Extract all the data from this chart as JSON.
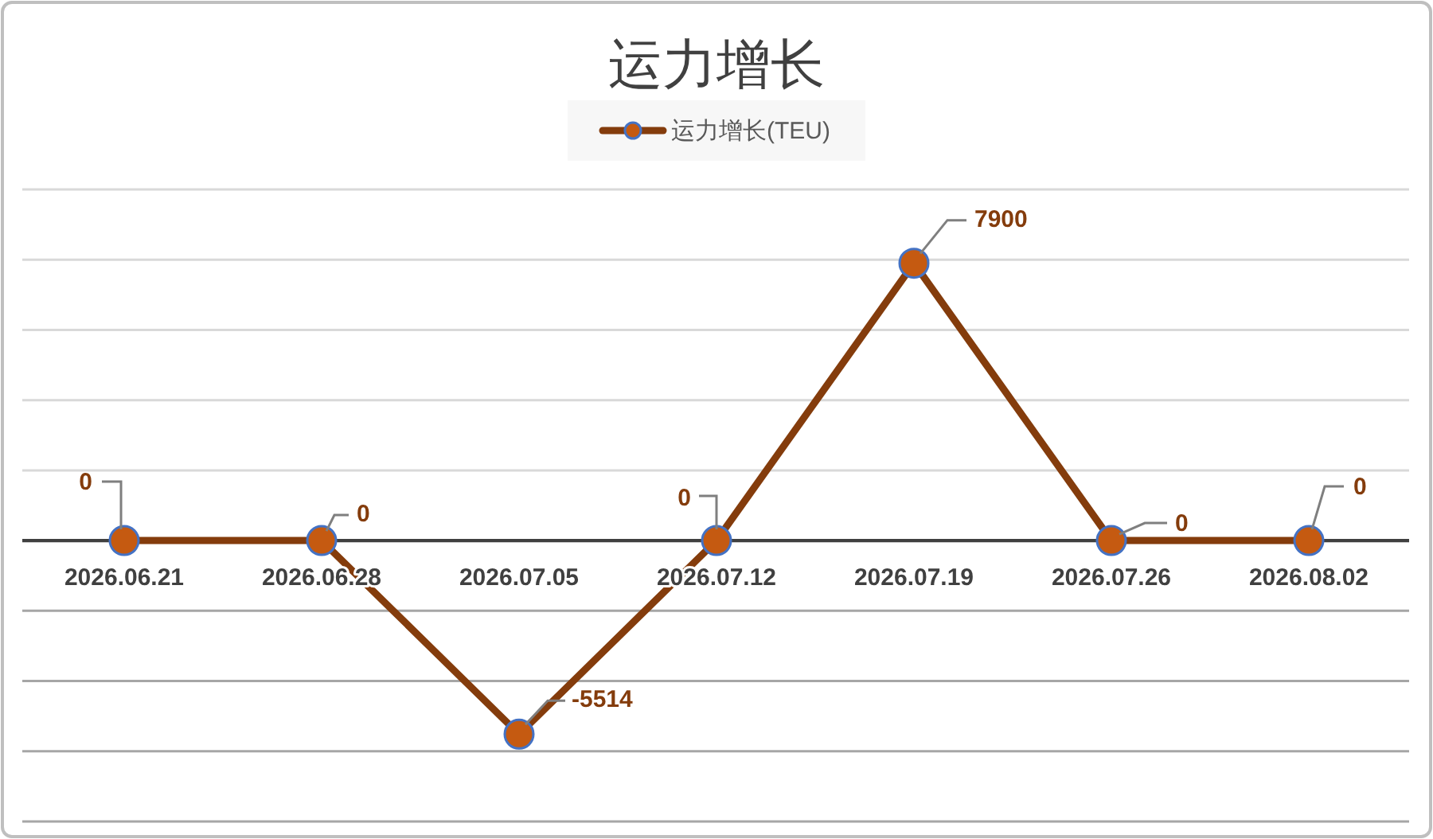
{
  "chart_data": {
    "type": "line",
    "title": "运力增长",
    "categories": [
      "2026.06.21",
      "2026.06.28",
      "2026.07.05",
      "2026.07.12",
      "2026.07.19",
      "2026.07.26",
      "2026.08.02"
    ],
    "series": [
      {
        "name": "运力增长(TEU)",
        "color": "#843c0c",
        "values": [
          0,
          0,
          -5514,
          0,
          7900,
          0,
          0
        ]
      }
    ],
    "ylim": [
      -8000,
      10000
    ],
    "yticks": [
      {
        "value": -8000,
        "label": null
      },
      {
        "value": -6000,
        "label": null
      },
      {
        "value": -4000,
        "label": null
      },
      {
        "value": -2000,
        "label": null
      },
      {
        "value": 0,
        "label": null
      },
      {
        "value": 2000,
        "label": null
      },
      {
        "value": 4000,
        "label": null
      },
      {
        "value": 6000,
        "label": null
      },
      {
        "value": 8000,
        "label": null
      },
      {
        "value": 10000,
        "label": null
      }
    ],
    "grid": "y",
    "legend": "top",
    "marker": "circle",
    "line_style": "solid",
    "data_labels": true,
    "tick_labels": "x"
  }
}
